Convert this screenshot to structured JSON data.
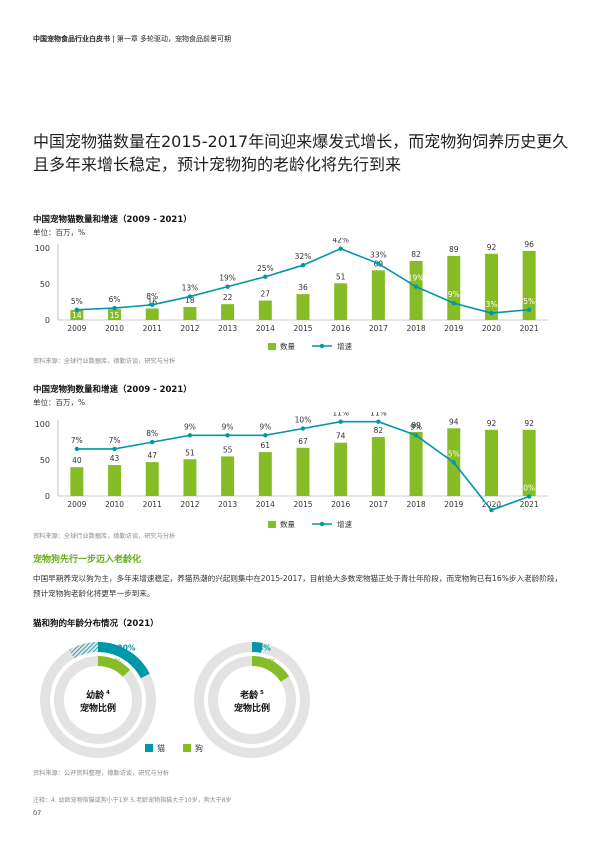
{
  "header": {
    "report": "中国宠物食品行业白皮书",
    "separator": "|",
    "chapter": "第一章 多轮驱动，宠物食品前景可期"
  },
  "headline": "中国宠物猫数量在2015-2017年间迎来爆发式增长，而宠物狗饲养历史更久且多年来增长稳定，预计宠物狗的老龄化将先行到来",
  "colors": {
    "bar": "#86bc25",
    "line": "#0097a9",
    "cat": "#0097a9",
    "dog": "#86bc25",
    "ring": "#e3e3e3"
  },
  "chart_data": [
    {
      "type": "bar",
      "title": "中国宠物猫数量和增速（2009 - 2021）",
      "unit": "单位：百万，%",
      "categories": [
        "2009",
        "2010",
        "2011",
        "2012",
        "2013",
        "2014",
        "2015",
        "2016",
        "2017",
        "2018",
        "2019",
        "2020",
        "2021"
      ],
      "yticks": [
        "0",
        "50",
        "100"
      ],
      "ylim": [
        0,
        100
      ],
      "series": [
        {
          "name": "数量",
          "kind": "bar",
          "values": [
            14,
            15,
            16,
            18,
            22,
            27,
            36,
            51,
            69,
            82,
            89,
            92,
            96
          ]
        },
        {
          "name": "增速",
          "kind": "line",
          "values": [
            5,
            6,
            8,
            13,
            19,
            25,
            32,
            42,
            33,
            19,
            9,
            3,
            5
          ],
          "labels": [
            "5%",
            "6%",
            "8%",
            "13%",
            "19%",
            "25%",
            "32%",
            "42%",
            "33%",
            "19%",
            "9%",
            "3%",
            "5%"
          ]
        }
      ],
      "legend": [
        "数量",
        "增速"
      ],
      "legend_position": "bottom",
      "source": "资料来源：全球行业数据库，德勤访谈，研究与分析"
    },
    {
      "type": "bar",
      "title": "中国宠物狗数量和增速（2009 - 2021）",
      "unit": "单位：百万，%",
      "categories": [
        "2009",
        "2010",
        "2011",
        "2012",
        "2013",
        "2014",
        "2015",
        "2016",
        "2017",
        "2018",
        "2019",
        "2020",
        "2021"
      ],
      "yticks": [
        "0",
        "50",
        "100"
      ],
      "ylim": [
        0,
        100
      ],
      "series": [
        {
          "name": "数量",
          "kind": "bar",
          "values": [
            40,
            43,
            47,
            51,
            55,
            61,
            67,
            74,
            82,
            89,
            94,
            92,
            92
          ]
        },
        {
          "name": "增速",
          "kind": "line",
          "values": [
            7,
            7,
            8,
            9,
            9,
            9,
            10,
            11,
            11,
            9,
            5,
            -2,
            0
          ],
          "labels": [
            "7%",
            "7%",
            "8%",
            "9%",
            "9%",
            "9%",
            "10%",
            "11%",
            "11%",
            "9%",
            "5%",
            "-2%",
            "0%"
          ]
        }
      ],
      "legend": [
        "数量",
        "增速"
      ],
      "legend_position": "bottom",
      "source": "资料来源：全球行业数据库，德勤访谈，研究与分析"
    },
    {
      "type": "pie",
      "title": "猫和狗的年龄分布情况（2021）",
      "donuts": [
        {
          "label_line1": "幼龄",
          "sup": "4",
          "label_line2": "宠物比例",
          "series": [
            {
              "name": "猫",
              "value_label": "15-20%",
              "value": 17.5
            },
            {
              "name": "狗",
              "value_label": "13%",
              "value": 13
            }
          ]
        },
        {
          "label_line1": "老龄",
          "sup": "5",
          "label_line2": "宠物比例",
          "series": [
            {
              "name": "猫",
              "value_label": "3%",
              "value": 3
            },
            {
              "name": "狗",
              "value_label": "16%",
              "value": 16
            }
          ]
        }
      ],
      "legend": [
        "猫",
        "狗"
      ],
      "source": "资料来源：公开资料整理，德勤访谈，研究与分析"
    }
  ],
  "section": {
    "title": "宠物狗先行一步迈入老龄化",
    "paragraph": "中国早期养宠以狗为主，多年来增速稳定，养猫热潮的兴起则集中在2015-2017，目前绝大多数宠物猫正处于青壮年阶段，而宠物狗已有16%步入老龄阶段，预计宠物狗老龄化将更早一步到来。"
  },
  "footnote": "注释：4. 幼龄宠物指猫或狗小于1岁  5.老龄宠物指猫大于10岁，狗大于8岁",
  "page_number": "07"
}
